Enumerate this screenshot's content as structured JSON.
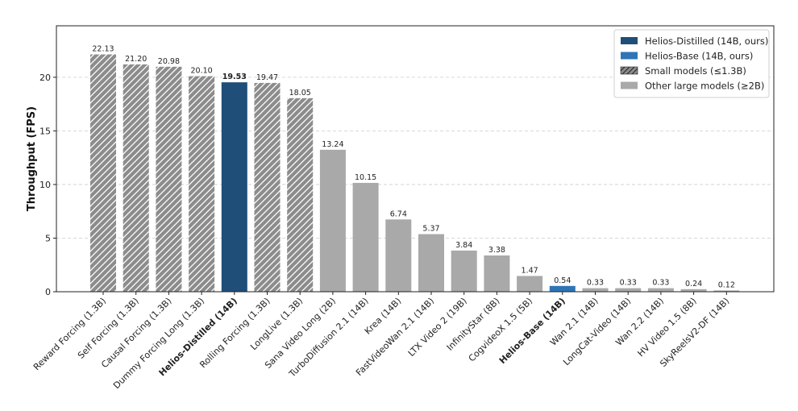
{
  "chart_data": {
    "type": "bar",
    "ylabel": "Throughput (FPS)",
    "xlabel": "",
    "ylim": [
      0,
      24.8
    ],
    "yticks": [
      0,
      5,
      10,
      15,
      20
    ],
    "grid": "y-dashed",
    "legend_position": "top-right",
    "colors": {
      "distilled": "#1f4e79",
      "base": "#2e75b6",
      "small": "#8c8c8c",
      "other": "#a9a9a9"
    },
    "legend": [
      {
        "label": "Helios-Distilled (14B, ours)",
        "group": "distilled"
      },
      {
        "label": "Helios-Base (14B, ours)",
        "group": "base"
      },
      {
        "label": "Small models (≤1.3B)",
        "group": "small"
      },
      {
        "label": "Other large models (≥2B)",
        "group": "other"
      }
    ],
    "bars": [
      {
        "category": "Reward Forcing (1.3B)",
        "value": 22.13,
        "value_label": "22.13",
        "group": "small",
        "bold": false
      },
      {
        "category": "Self Forcing (1.3B)",
        "value": 21.2,
        "value_label": "21.20",
        "group": "small",
        "bold": false
      },
      {
        "category": "Causal Forcing (1.3B)",
        "value": 20.98,
        "value_label": "20.98",
        "group": "small",
        "bold": false
      },
      {
        "category": "Dummy Forcing Long (1.3B)",
        "value": 20.1,
        "value_label": "20.10",
        "group": "small",
        "bold": false
      },
      {
        "category": "Helios-Distilled (14B)",
        "value": 19.53,
        "value_label": "19.53",
        "group": "distilled",
        "bold": true
      },
      {
        "category": "Rolling Forcing (1.3B)",
        "value": 19.47,
        "value_label": "19.47",
        "group": "small",
        "bold": false
      },
      {
        "category": "LongLive (1.3B)",
        "value": 18.05,
        "value_label": "18.05",
        "group": "small",
        "bold": false
      },
      {
        "category": "Sana Video Long (2B)",
        "value": 13.24,
        "value_label": "13.24",
        "group": "other",
        "bold": false
      },
      {
        "category": "TurboDiffusion 2.1 (14B)",
        "value": 10.15,
        "value_label": "10.15",
        "group": "other",
        "bold": false
      },
      {
        "category": "Krea (14B)",
        "value": 6.74,
        "value_label": "6.74",
        "group": "other",
        "bold": false
      },
      {
        "category": "FastVideoWan 2.1 (14B)",
        "value": 5.37,
        "value_label": "5.37",
        "group": "other",
        "bold": false
      },
      {
        "category": "LTX Video 2 (19B)",
        "value": 3.84,
        "value_label": "3.84",
        "group": "other",
        "bold": false
      },
      {
        "category": "InfinityStar (8B)",
        "value": 3.38,
        "value_label": "3.38",
        "group": "other",
        "bold": false
      },
      {
        "category": "CogvideoX 1.5 (5B)",
        "value": 1.47,
        "value_label": "1.47",
        "group": "other",
        "bold": false
      },
      {
        "category": "Helios-Base (14B)",
        "value": 0.54,
        "value_label": "0.54",
        "group": "base",
        "bold": true
      },
      {
        "category": "Wan 2.1 (14B)",
        "value": 0.33,
        "value_label": "0.33",
        "group": "other",
        "bold": false
      },
      {
        "category": "LongCat-Video (14B)",
        "value": 0.33,
        "value_label": "0.33",
        "group": "other",
        "bold": false
      },
      {
        "category": "Wan 2.2 (14B)",
        "value": 0.33,
        "value_label": "0.33",
        "group": "other",
        "bold": false
      },
      {
        "category": "HV Video 1.5 (8B)",
        "value": 0.24,
        "value_label": "0.24",
        "group": "other",
        "bold": false
      },
      {
        "category": "SkyReelsV2-DF (14B)",
        "value": 0.12,
        "value_label": "0.12",
        "group": "other",
        "bold": false
      }
    ]
  }
}
